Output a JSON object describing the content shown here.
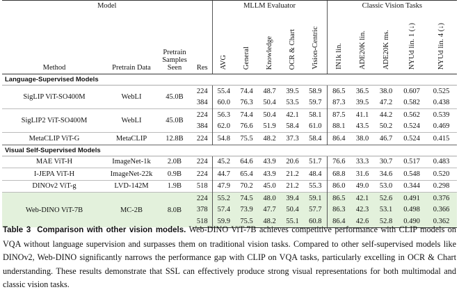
{
  "table": {
    "groups": [
      "Model",
      "MLLM Evaluator",
      "Classic Vision Tasks"
    ],
    "columns": [
      "Method",
      "Pretrain Data",
      "Pretrain Samples Seen",
      "Res",
      "AVG",
      "General",
      "Knowledge",
      "OCR & Chart",
      "Vision-Centric",
      "IN1k lin.",
      "ADE20K lin.",
      "ADE20K ms.",
      "NYUd lin. 1 (↓)",
      "NYUd lin. 4 (↓)"
    ],
    "sections": [
      {
        "title": "Language-Supervised Models",
        "models": [
          {
            "method": "SigLIP ViT-SO400M",
            "data": "WebLI",
            "samples": "45.0B",
            "highlight": false,
            "rows": [
              {
                "res": "224",
                "values": [
                  "55.4",
                  "74.4",
                  "48.7",
                  "39.5",
                  "58.9",
                  "86.5",
                  "36.5",
                  "38.0",
                  "0.607",
                  "0.525"
                ]
              },
              {
                "res": "384",
                "values": [
                  "60.0",
                  "76.3",
                  "50.4",
                  "53.5",
                  "59.7",
                  "87.3",
                  "39.5",
                  "47.2",
                  "0.582",
                  "0.438"
                ]
              }
            ]
          },
          {
            "method": "SigLIP2 ViT-SO400M",
            "data": "WebLI",
            "samples": "45.0B",
            "highlight": false,
            "rows": [
              {
                "res": "224",
                "values": [
                  "56.3",
                  "74.4",
                  "50.4",
                  "42.1",
                  "58.1",
                  "87.5",
                  "41.1",
                  "44.2",
                  "0.562",
                  "0.539"
                ]
              },
              {
                "res": "384",
                "values": [
                  "62.0",
                  "76.6",
                  "51.9",
                  "58.4",
                  "61.0",
                  "88.1",
                  "43.5",
                  "50.2",
                  "0.524",
                  "0.469"
                ]
              }
            ]
          },
          {
            "method": "MetaCLIP ViT-G",
            "data": "MetaCLIP",
            "samples": "12.8B",
            "highlight": false,
            "rows": [
              {
                "res": "224",
                "values": [
                  "54.8",
                  "75.5",
                  "48.2",
                  "37.3",
                  "58.4",
                  "86.4",
                  "38.0",
                  "46.7",
                  "0.524",
                  "0.415"
                ]
              }
            ]
          }
        ]
      },
      {
        "title": "Visual Self-Supervised Models",
        "models": [
          {
            "method": "MAE ViT-H",
            "data": "ImageNet-1k",
            "samples": "2.0B",
            "highlight": false,
            "rows": [
              {
                "res": "224",
                "values": [
                  "45.2",
                  "64.6",
                  "43.9",
                  "20.6",
                  "51.7",
                  "76.6",
                  "33.3",
                  "30.7",
                  "0.517",
                  "0.483"
                ]
              }
            ]
          },
          {
            "method": "I-JEPA ViT-H",
            "data": "ImageNet-22k",
            "samples": "0.9B",
            "highlight": false,
            "rows": [
              {
                "res": "224",
                "values": [
                  "44.7",
                  "65.4",
                  "43.9",
                  "21.2",
                  "48.4",
                  "68.8",
                  "31.6",
                  "34.6",
                  "0.548",
                  "0.520"
                ]
              }
            ]
          },
          {
            "method": "DINOv2 ViT-g",
            "data": "LVD-142M",
            "samples": "1.9B",
            "highlight": false,
            "rows": [
              {
                "res": "518",
                "values": [
                  "47.9",
                  "70.2",
                  "45.0",
                  "21.2",
                  "55.3",
                  "86.0",
                  "49.0",
                  "53.0",
                  "0.344",
                  "0.298"
                ]
              }
            ]
          },
          {
            "method": "Web-DINO ViT-7B",
            "data": "MC-2B",
            "samples": "8.0B",
            "highlight": true,
            "rows": [
              {
                "res": "224",
                "values": [
                  "55.2",
                  "74.5",
                  "48.0",
                  "39.4",
                  "59.1",
                  "86.5",
                  "42.1",
                  "52.6",
                  "0.491",
                  "0.376"
                ]
              },
              {
                "res": "378",
                "values": [
                  "57.4",
                  "73.9",
                  "47.7",
                  "50.4",
                  "57.7",
                  "86.3",
                  "42.3",
                  "53.1",
                  "0.498",
                  "0.366"
                ]
              },
              {
                "res": "518",
                "values": [
                  "59.9",
                  "75.5",
                  "48.2",
                  "55.1",
                  "60.8",
                  "86.4",
                  "42.6",
                  "52.8",
                  "0.490",
                  "0.362"
                ]
              }
            ]
          }
        ]
      }
    ]
  },
  "caption": {
    "label": "Table 3",
    "title": "Comparison with other vision models.",
    "text": "Web-DINO ViT-7B achieves competitive performance with CLIP models on VQA without language supervision and surpasses them on traditional vision tasks. Compared to other self-supervised models like DINOv2, Web-DINO significantly narrows the performance gap with CLIP on VQA tasks, particularly excelling in OCR & Chart understanding. These results demonstrate that SSL can effectively produce strong visual representations for both multimodal and classic vision tasks."
  }
}
